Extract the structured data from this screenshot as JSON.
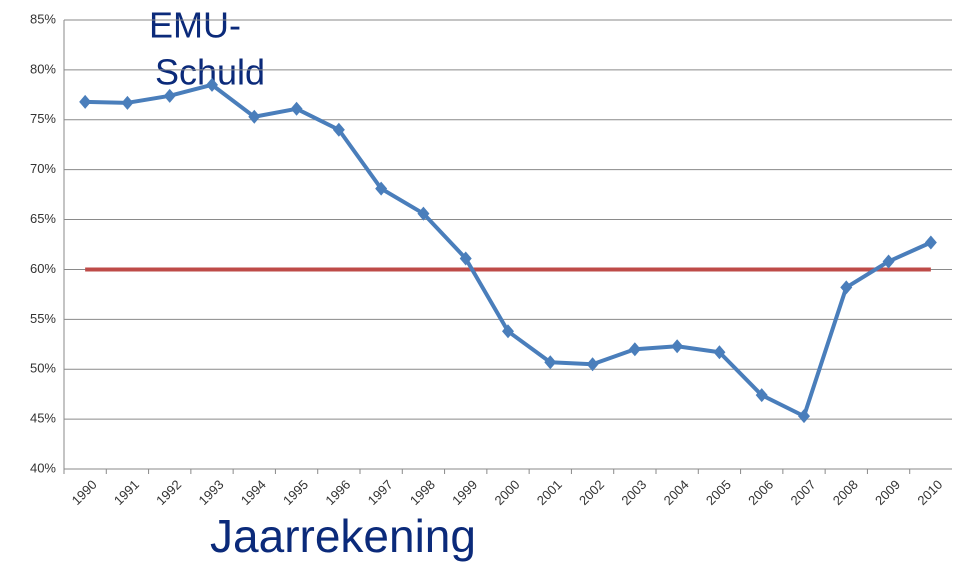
{
  "chart_data": {
    "type": "line",
    "title": [
      "EMU-",
      "Schuld"
    ],
    "x_label": "Jaarrekening",
    "categories": [
      "1990",
      "1991",
      "1992",
      "1993",
      "1994",
      "1995",
      "1996",
      "1997",
      "1998",
      "1999",
      "2000",
      "2001",
      "2002",
      "2003",
      "2004",
      "2005",
      "2006",
      "2007",
      "2008",
      "2009",
      "2010"
    ],
    "series": [
      {
        "color": "#4a7ebb",
        "values": [
          76.8,
          76.7,
          77.4,
          78.5,
          75.3,
          76.1,
          74.0,
          68.1,
          65.6,
          61.1,
          53.8,
          50.7,
          50.5,
          52.0,
          52.3,
          51.7,
          47.4,
          45.3,
          58.2,
          60.8,
          62.7
        ]
      },
      {
        "color": "#be4b48",
        "values": [
          60,
          60,
          60,
          60,
          60,
          60,
          60,
          60,
          60,
          60,
          60,
          60,
          60,
          60,
          60,
          60,
          60,
          60,
          60,
          60,
          60
        ]
      }
    ],
    "ylim": [
      40,
      85
    ],
    "yticks": [
      {
        "value": 40,
        "label": "40%"
      },
      {
        "value": 45,
        "label": "45%"
      },
      {
        "value": 50,
        "label": "50%"
      },
      {
        "value": 55,
        "label": "55%"
      },
      {
        "value": 60,
        "label": "60%"
      },
      {
        "value": 65,
        "label": "65%"
      },
      {
        "value": 70,
        "label": "70%"
      },
      {
        "value": 75,
        "label": "75%"
      },
      {
        "value": 80,
        "label": "80%"
      },
      {
        "value": 85,
        "label": "85%"
      }
    ],
    "grid": true
  }
}
